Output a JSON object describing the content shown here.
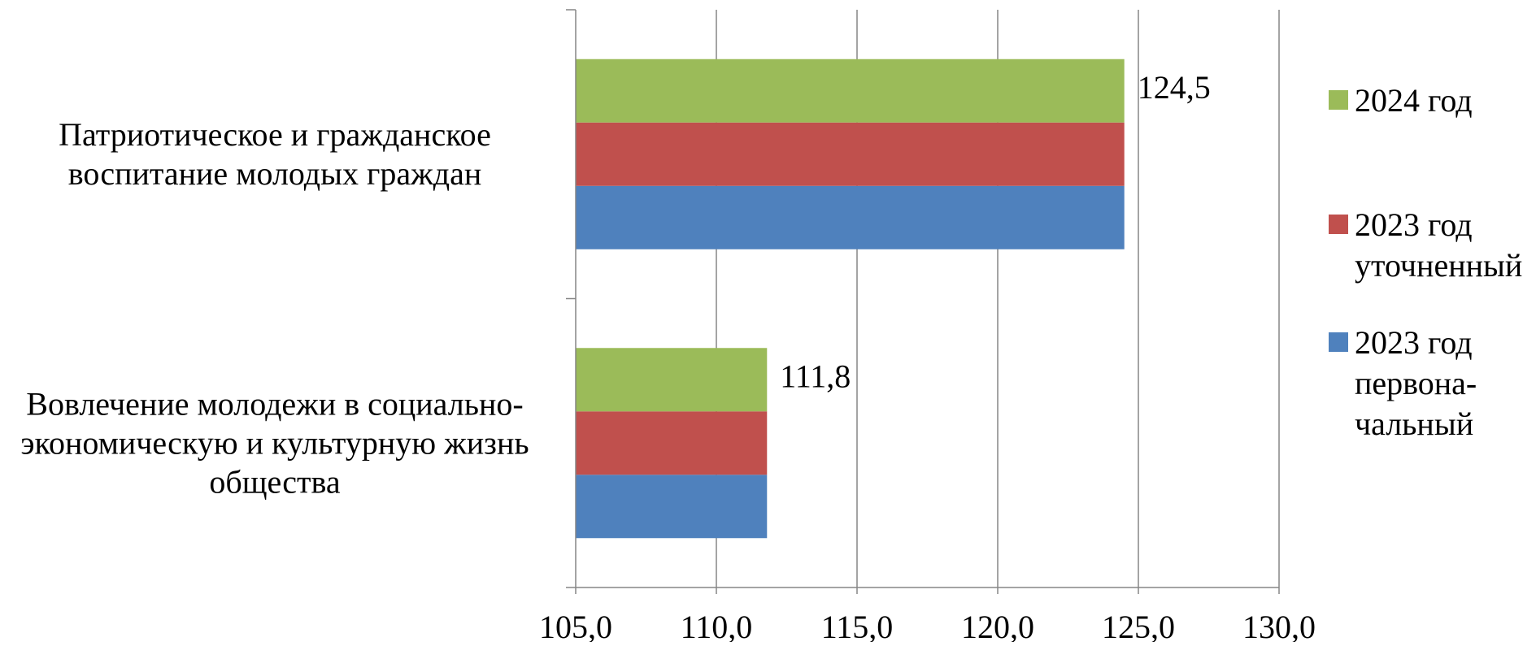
{
  "chart_data": {
    "type": "bar",
    "orientation": "horizontal",
    "categories": [
      [
        "Вовлечение молодежи в социально-",
        "экономическую и культурную жизнь",
        "общества"
      ],
      [
        "Патриотическое и гражданское",
        "воспитание молодых граждан"
      ]
    ],
    "series": [
      {
        "name": [
          "2023 год",
          "перво­на-",
          "чальный"
        ],
        "values": [
          111.8,
          124.5
        ],
        "color": "#4f81bd"
      },
      {
        "name": [
          "2023 год",
          "уточненный"
        ],
        "values": [
          111.8,
          124.5
        ],
        "color": "#c0504d"
      },
      {
        "name": [
          "2024 год"
        ],
        "values": [
          111.8,
          124.5
        ],
        "color": "#9bbb59"
      }
    ],
    "data_labels": [
      {
        "category_index": 0,
        "text": "111,8"
      },
      {
        "category_index": 1,
        "text": "124,5"
      }
    ],
    "xlim": [
      105,
      130
    ],
    "xticks": [
      "105,0",
      "110,0",
      "115,0",
      "120,0",
      "125,0",
      "130,0"
    ],
    "tick_step": 5,
    "grid": "vertical",
    "legend_position": "right",
    "title": "",
    "xlabel": "",
    "ylabel": ""
  }
}
